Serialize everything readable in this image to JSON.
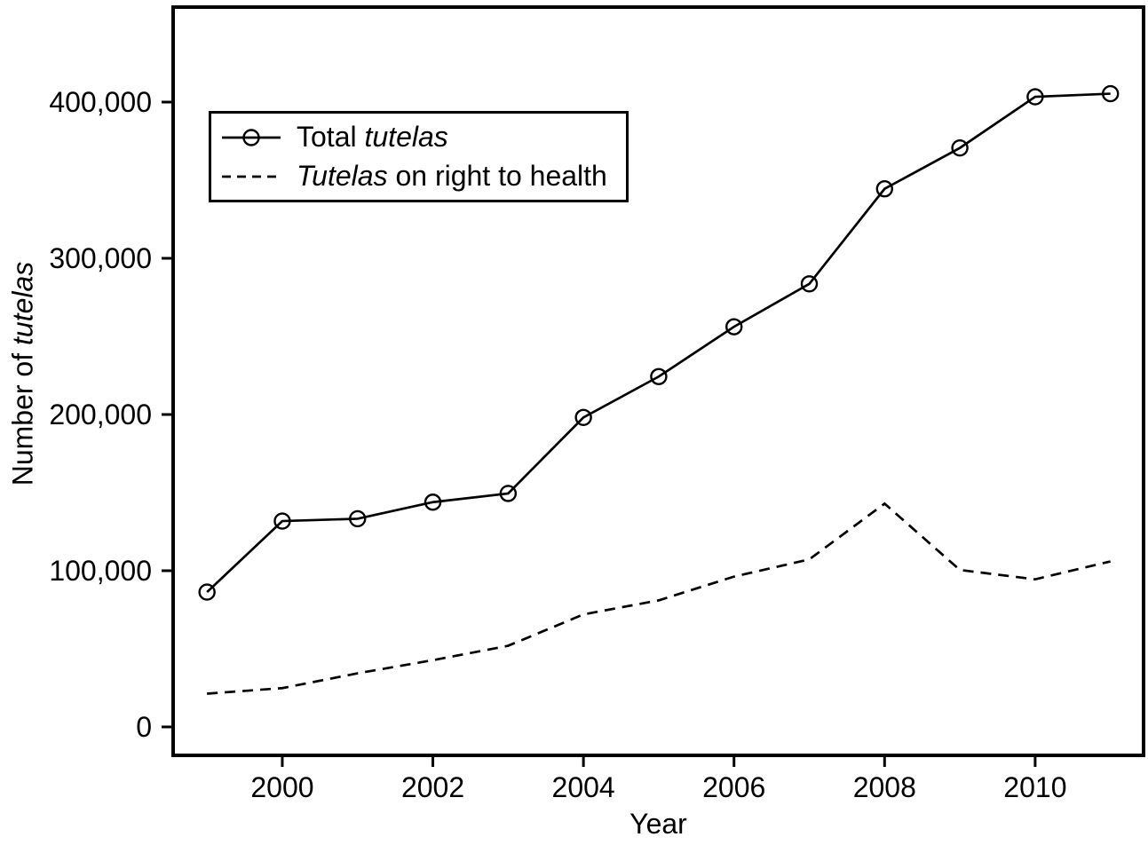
{
  "figure": {
    "background": "#ffffff",
    "ink_color": "#000000"
  },
  "chart_data": {
    "type": "line",
    "title": "",
    "xlabel": "Year",
    "ylabel": {
      "pre": "Number of ",
      "italic": "tutelas"
    },
    "x": [
      1999,
      2000,
      2001,
      2002,
      2003,
      2004,
      2005,
      2006,
      2007,
      2008,
      2009,
      2010,
      2011
    ],
    "series": [
      {
        "name": "Total tutelas",
        "line_style": "solid",
        "marker": "circle",
        "values": [
          86313,
          131764,
          133272,
          143887,
          149439,
          198125,
          224270,
          256166,
          283637,
          344468,
          370640,
          403380,
          405359
        ]
      },
      {
        "name": "Tutelas on right to health",
        "line_style": "dashed",
        "marker": "none",
        "values": [
          21301,
          24843,
          34319,
          42734,
          51944,
          72033,
          81017,
          96226,
          107238,
          142957,
          100490,
          94502,
          105947
        ]
      }
    ],
    "x_ticks": [
      2000,
      2002,
      2004,
      2006,
      2008,
      2010
    ],
    "x_tick_labels": [
      "2000",
      "2002",
      "2004",
      "2006",
      "2008",
      "2010"
    ],
    "y_ticks": [
      0,
      100000,
      200000,
      300000,
      400000
    ],
    "y_tick_labels": [
      "0",
      "100,000",
      "200,000",
      "300,000",
      "400,000"
    ],
    "xlim": [
      1998.55,
      2011.44
    ],
    "ylim": [
      -18200,
      460800
    ],
    "grid": false,
    "legend_position": "upper-left-inside"
  },
  "legend": {
    "items": [
      {
        "pre": "Total ",
        "italic": "tutelas",
        "post": ""
      },
      {
        "pre": "",
        "italic": "Tutelas",
        "post": " on right to health"
      }
    ]
  }
}
